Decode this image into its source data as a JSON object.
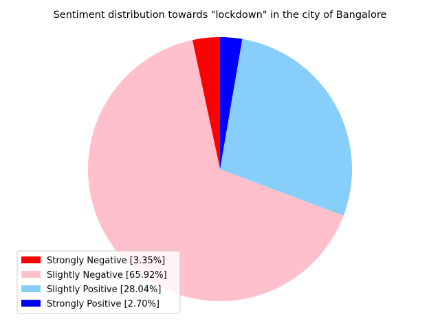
{
  "chart_data": {
    "type": "pie",
    "title": "Sentiment distribution towards \"lockdown\" in the city of Bangalore",
    "legend_position": "lower-left",
    "start_angle_deg": 90,
    "direction": "counterclockwise",
    "slices": [
      {
        "label": "Strongly Negative [3.35%]",
        "value": 3.35,
        "color": "#ff0000"
      },
      {
        "label": "Slightly Negative [65.92%]",
        "value": 65.92,
        "color": "#ffc0cb"
      },
      {
        "label": "Slightly Positive [28.04%]",
        "value": 28.04,
        "color": "#87cefa"
      },
      {
        "label": "Strongly Positive [2.70%]",
        "value": 2.7,
        "color": "#0000ff"
      }
    ]
  }
}
